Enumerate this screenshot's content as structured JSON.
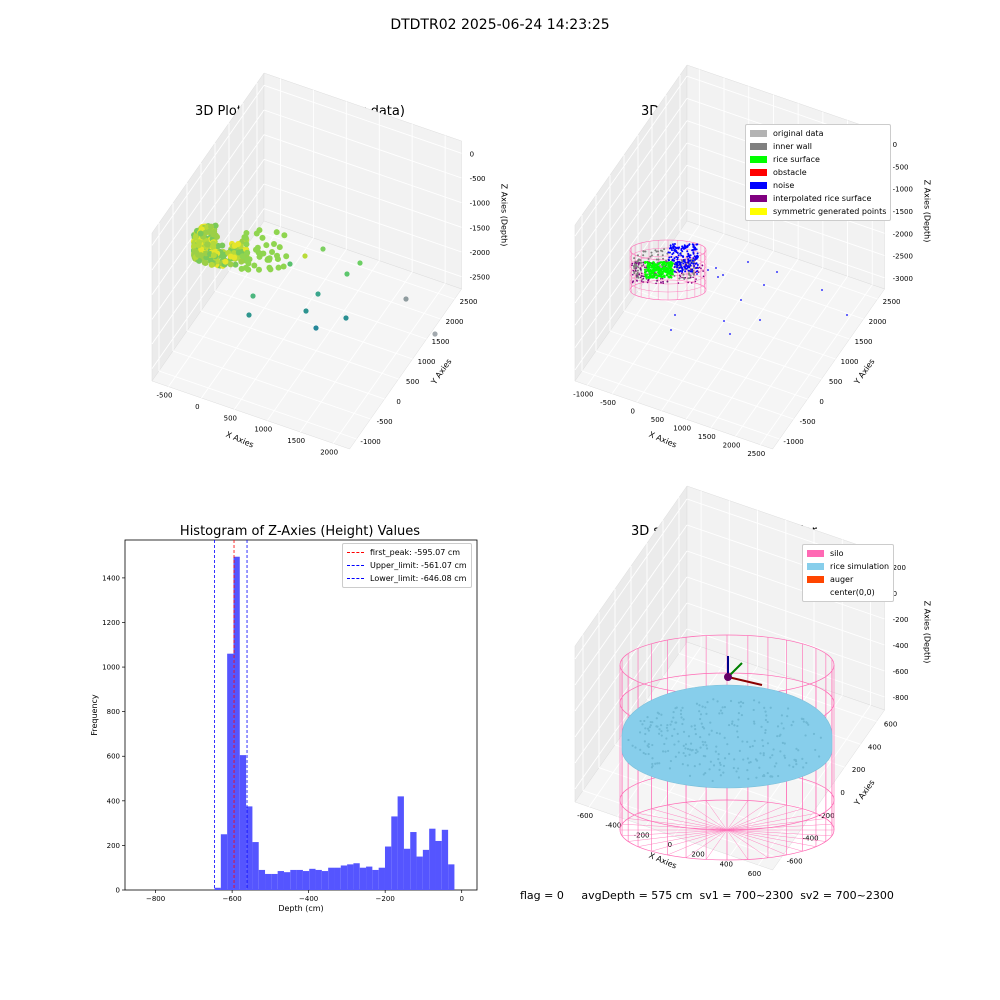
{
  "figure": {
    "title": "DTDTR02 2025-06-24 14:23:25",
    "status_line": "flag = 0     avgDepth = 575 cm  sv1 = 700~2300  sv2 = 700~2300"
  },
  "colors": {
    "histogram_bar": "#5555ff",
    "peak_line": "#ff0000",
    "limit_line": "#0000ff",
    "silo_wire": "#ff69b4",
    "rice_sim": "#87ceeb",
    "auger": "#ff4500",
    "original_data": "#b3b3b3",
    "inner_wall": "#808080",
    "rice_surface": "#00ff00",
    "obstacle": "#ff0000",
    "noise": "#0000ff",
    "interpolated": "#800080",
    "symmetric": "#ffff00"
  },
  "chart_data": [
    {
      "type": "scatter",
      "title": "3D Plot of Silo Interior(row data)",
      "xlabel": "X Axies",
      "ylabel": "Y Axies",
      "zlabel": "Z Axies (Depth)",
      "x_ticks": [
        "-500",
        "0",
        "500",
        "1000",
        "1500",
        "2000"
      ],
      "y_ticks": [
        "-1000",
        "-500",
        "0",
        "500",
        "1000",
        "1500",
        "2000",
        "2500"
      ],
      "z_ticks": [
        "0",
        "-500",
        "-1000",
        "-1500",
        "-2000",
        "-2500"
      ],
      "xlim": [
        -600,
        2300
      ],
      "ylim": [
        -1100,
        2700
      ],
      "zlim": [
        -2800,
        100
      ],
      "grid": true
    },
    {
      "type": "scatter",
      "title": "3D classify of Silo Interior",
      "xlabel": "X Axies",
      "ylabel": "Y Axies",
      "zlabel": "Z Axies (Depth)",
      "x_ticks": [
        "-1000",
        "-500",
        "0",
        "500",
        "1000",
        "1500",
        "2000",
        "2500"
      ],
      "y_ticks": [
        "-1000",
        "-500",
        "0",
        "500",
        "1000",
        "1500",
        "2000",
        "2500"
      ],
      "z_ticks": [
        "0",
        "-500",
        "-1000",
        "-1500",
        "-2000",
        "-2500",
        "-3000"
      ],
      "xlim": [
        -1100,
        2600
      ],
      "ylim": [
        -1100,
        2700
      ],
      "zlim": [
        -3100,
        100
      ],
      "grid": true,
      "legend_position": "top-right",
      "legend": [
        {
          "label": "original data",
          "color": "#b3b3b3"
        },
        {
          "label": "inner wall",
          "color": "#808080"
        },
        {
          "label": "rice surface",
          "color": "#00ff00"
        },
        {
          "label": "obstacle",
          "color": "#ff0000"
        },
        {
          "label": "noise",
          "color": "#0000ff"
        },
        {
          "label": "interpolated rice surface",
          "color": "#800080"
        },
        {
          "label": "symmetric generated points",
          "color": "#ffff00"
        }
      ]
    },
    {
      "type": "bar",
      "title": "Histogram of Z-Axies (Height) Values",
      "xlabel": "Depth (cm)",
      "ylabel": "Frequency",
      "xlim": [
        -880,
        40
      ],
      "ylim": [
        0,
        1570
      ],
      "x_ticks": [
        -800,
        -600,
        -400,
        -200,
        0
      ],
      "y_ticks": [
        0,
        200,
        400,
        600,
        800,
        1000,
        1200,
        1400
      ],
      "bin_width": 16.5,
      "bin_start": -646,
      "values": [
        10,
        250,
        1060,
        1495,
        605,
        375,
        215,
        90,
        72,
        72,
        85,
        80,
        90,
        90,
        85,
        95,
        90,
        85,
        100,
        100,
        110,
        115,
        120,
        100,
        105,
        90,
        100,
        195,
        330,
        420,
        185,
        260,
        150,
        180,
        275,
        220,
        270,
        115
      ],
      "vlines": [
        {
          "label": "first_peak: -595.07 cm",
          "x": -595.07,
          "color": "#ff0000"
        },
        {
          "label": "Upper_limit: -561.07 cm",
          "x": -561.07,
          "color": "#0000ff"
        },
        {
          "label": "Lower_limit: -646.08 cm",
          "x": -646.08,
          "color": "#0000ff"
        }
      ],
      "legend_position": "top-right"
    },
    {
      "type": "scatter",
      "title": "3D simulation of Silo Interior",
      "xlabel": "X Axies",
      "ylabel": "Y Axies",
      "zlabel": "Z Axies (Depth)",
      "x_ticks": [
        "-600",
        "-400",
        "-200",
        "0",
        "200",
        "400",
        "600"
      ],
      "y_ticks": [
        "-600",
        "-400",
        "-200",
        "0",
        "200",
        "400",
        "600"
      ],
      "z_ticks": [
        "200",
        "0",
        "-200",
        "-400",
        "-600",
        "-800"
      ],
      "xlim": [
        -700,
        700
      ],
      "ylim": [
        -700,
        700
      ],
      "zlim": [
        -950,
        350
      ],
      "grid": true,
      "legend_position": "top-right",
      "legend": [
        {
          "label": "silo",
          "color": "#ff69b4"
        },
        {
          "label": "rice simulation",
          "color": "#87ceeb"
        },
        {
          "label": "auger",
          "color": "#ff4500"
        },
        {
          "label": "center(0,0)",
          "color": ""
        }
      ]
    }
  ]
}
